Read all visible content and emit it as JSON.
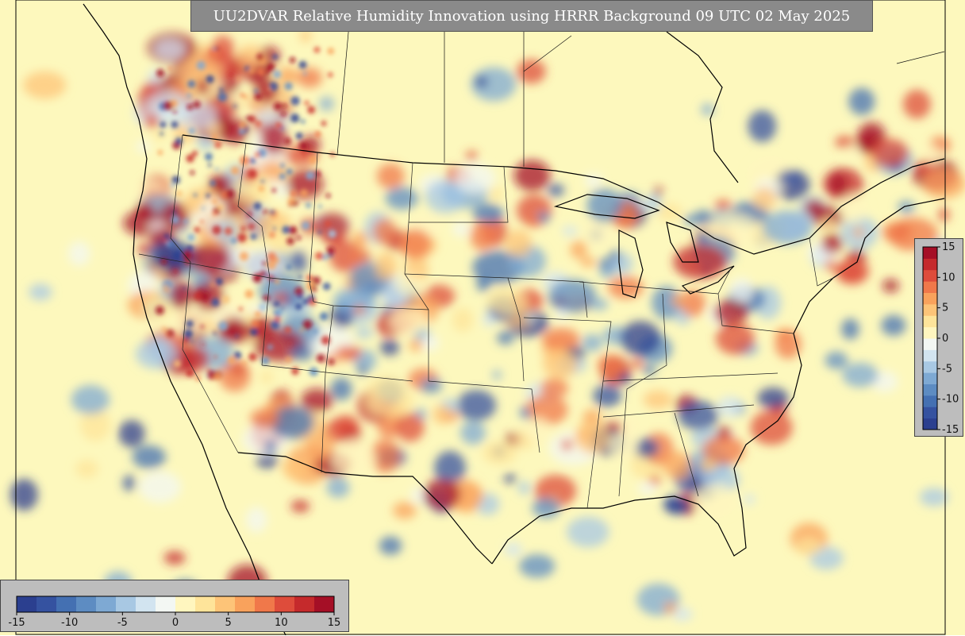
{
  "title": "UU2DVAR Relative Humidity Innovation using HRRR Background 09 UTC 02 May 2025",
  "colorbar": {
    "min": -15,
    "max": 15,
    "ticks": [
      -15,
      -10,
      -5,
      0,
      5,
      10,
      15
    ],
    "colors": [
      "#2b3f8f",
      "#3552a0",
      "#4470b2",
      "#5d8cc2",
      "#7ea9d3",
      "#a8c8e3",
      "#d2e4f0",
      "#f3f7f3",
      "#fff6bf",
      "#fee49a",
      "#fdc478",
      "#f9a25c",
      "#f0784a",
      "#de4c3b",
      "#c52a2c",
      "#a50f26"
    ]
  },
  "map": {
    "background_color": "#fdf8bd",
    "border_color": "#000000"
  }
}
